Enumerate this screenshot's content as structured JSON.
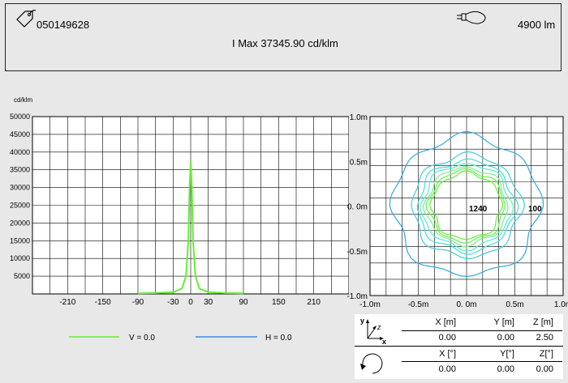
{
  "header": {
    "id_label": "050149628",
    "flux_label": "4900 lm",
    "imax_label": "I Max 37345.90 cd/klm"
  },
  "icons": {
    "tag": "price-tag-icon",
    "lamp": "lamp-bulb-icon",
    "axes": "xyz-axes-icon",
    "rotation": "rotation-arrow-icon"
  },
  "chart_data": [
    {
      "type": "line",
      "ylabel": "cd/klm",
      "x_ticks": [
        "-210",
        "-150",
        "-90",
        "-30",
        "0",
        "30",
        "90",
        "150",
        "210"
      ],
      "y_ticks": [
        "5000",
        "10000",
        "15000",
        "20000",
        "25000",
        "30000",
        "35000",
        "40000",
        "45000",
        "50000"
      ],
      "xlim": [
        -270,
        270
      ],
      "ylim": [
        0,
        50000
      ],
      "grid": true,
      "legend_placement": "bottom",
      "series": [
        {
          "name": "V = 0.0",
          "color": "#66ee33",
          "x": [
            -90,
            -60,
            -30,
            -15,
            -8,
            -4,
            -2,
            0,
            2,
            4,
            8,
            15,
            30,
            60,
            90
          ],
          "y": [
            150,
            250,
            500,
            1500,
            5000,
            15000,
            30000,
            37345.9,
            30000,
            15000,
            5000,
            1500,
            500,
            250,
            150
          ]
        },
        {
          "name": "H = 0.0",
          "color": "#4488dd",
          "x": [],
          "y": []
        }
      ]
    },
    {
      "type": "contour",
      "x_ticks": [
        "-1.0m",
        "-0.5m",
        "0. 0m",
        "0.5m",
        "1.0m"
      ],
      "y_ticks": [
        "1.0m",
        "0.5m",
        "0. 0m",
        "-0.5m",
        "-1.0m"
      ],
      "xlim": [
        -1.0,
        1.0
      ],
      "ylim": [
        -1.0,
        1.0
      ],
      "grid": true,
      "contour_labels": [
        "1240",
        "100"
      ],
      "levels": [
        {
          "color": "#33aadd",
          "r": 0.76
        },
        {
          "color": "#44ccdd",
          "r": 0.56
        },
        {
          "color": "#44dddd",
          "r": 0.5
        },
        {
          "color": "#55eecc",
          "r": 0.46
        },
        {
          "color": "#77ee88",
          "r": 0.42
        },
        {
          "color": "#66ee55",
          "r": 0.39
        },
        {
          "color": "#66ee33",
          "r": 0.36
        }
      ]
    }
  ],
  "position_table": {
    "headers": [
      "X [m]",
      "Y [m]",
      "Z [m]"
    ],
    "values": [
      "0.00",
      "0.00",
      "2.50"
    ]
  },
  "rotation_table": {
    "headers": [
      "X [°]",
      "Y[°]",
      "Z[°]"
    ],
    "values": [
      "0.00",
      "0.00",
      "0.00"
    ]
  },
  "axis_icon_labels": {
    "y": "y",
    "z": "z",
    "x": "x"
  }
}
